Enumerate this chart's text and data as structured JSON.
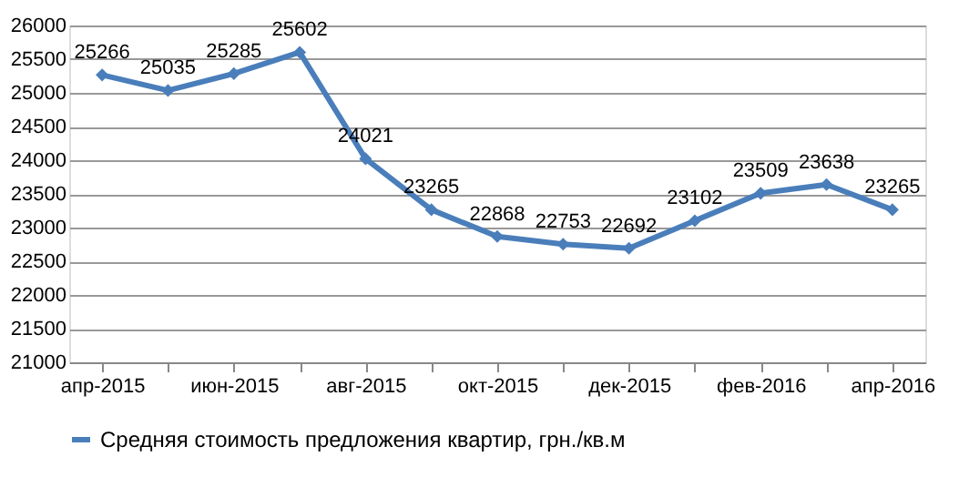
{
  "chart_data": {
    "type": "line",
    "categories": [
      "апр-2015",
      null,
      "июн-2015",
      null,
      "авг-2015",
      null,
      "окт-2015",
      null,
      "дек-2015",
      null,
      "фев-2016",
      null,
      "апр-2016"
    ],
    "series": [
      {
        "name": "Средняя стоимость предложения квартир, грн./кв.м",
        "color": "#4a7ebb",
        "values": [
          25266,
          25035,
          25285,
          25602,
          24021,
          23265,
          22868,
          22753,
          22692,
          23102,
          23509,
          23638,
          23265
        ]
      }
    ],
    "ylim": [
      21000,
      26000
    ],
    "yticks": [
      21000,
      21500,
      22000,
      22500,
      23000,
      23500,
      24000,
      24500,
      25000,
      25500,
      26000
    ],
    "grid": "y",
    "legend": "bottom",
    "marker": "diamond",
    "line_style": "solid",
    "data_labels": true
  }
}
